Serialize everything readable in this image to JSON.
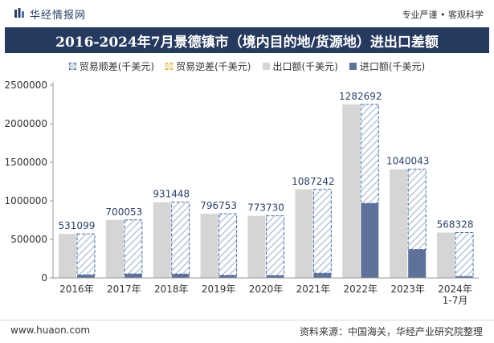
{
  "header": {
    "brand": "华经情报网",
    "slogan": "专业严谨 • 客观科学"
  },
  "colors": {
    "title_bg": "#26395e",
    "export": "#d5d5d5",
    "import": "#5f7199",
    "surplus_stroke": "#4a6fa5",
    "deficit_stroke": "#d8a832"
  },
  "chart_data": {
    "type": "bar",
    "title": "2016-2024年7月景德镇市（境内目的地/货源地）进出口差额",
    "categories": [
      "2016年",
      "2017年",
      "2018年",
      "2019年",
      "2020年",
      "2021年",
      "2022年",
      "2023年",
      "2024年\n1-7月"
    ],
    "series": [
      {
        "name": "贸易顺差(千美元)",
        "values": [
          531099,
          700053,
          931448,
          796753,
          773730,
          1087242,
          1282692,
          1040043,
          568328
        ]
      },
      {
        "name": "贸易逆差(千美元)",
        "values": [
          0,
          0,
          0,
          0,
          0,
          0,
          0,
          0,
          0
        ]
      },
      {
        "name": "出口额(千美元)",
        "values": [
          571000,
          752000,
          982000,
          832000,
          806000,
          1148000,
          2250000,
          1410000,
          588000
        ]
      },
      {
        "name": "进口额(千美元)",
        "values": [
          40000,
          52000,
          51000,
          35000,
          32000,
          61000,
          967000,
          370000,
          20000
        ]
      }
    ],
    "data_labels": [
      "531099",
      "700053",
      "931448",
      "796753",
      "773730",
      "1087242",
      "1282692",
      "1040043",
      "568328"
    ],
    "y_ticks": [
      "0",
      "500000",
      "1000000",
      "1500000",
      "2000000",
      "2500000"
    ],
    "ylim": [
      0,
      2500000
    ],
    "grid": false,
    "legend_position": "top"
  },
  "footer": {
    "website": "www.huaon.com",
    "source": "资料来源：中国海关，华经产业研究院整理"
  }
}
